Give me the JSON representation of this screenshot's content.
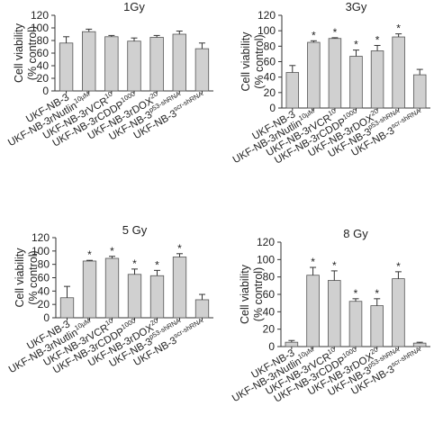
{
  "colors": {
    "bar_fill": "#d0d0d0",
    "bar_stroke": "#555555",
    "axis": "#333333",
    "text": "#222222"
  },
  "categories": [
    {
      "base": "UKF-NB-3",
      "sup": ""
    },
    {
      "base": "UKF-NB-3rNutlin",
      "sup": "10µM"
    },
    {
      "base": "UKF-NB-3rVCR",
      "sup": "10"
    },
    {
      "base": "UKF-NB-3rCDDP",
      "sup": "1000"
    },
    {
      "base": "UKF-NB-3rDOX",
      "sup": "20"
    },
    {
      "base": "UKF-NB-3",
      "sup": "p53-shRNA"
    },
    {
      "base": "UKF-NB-3",
      "sup": "scr-shRNA"
    }
  ],
  "chart_data": [
    {
      "type": "bar",
      "title": "1Gy",
      "ylabel": [
        "Cell viability",
        "(% control)"
      ],
      "ylim": [
        0,
        120
      ],
      "yticks": [
        0,
        20,
        40,
        60,
        80,
        100,
        120
      ],
      "values": [
        76,
        94,
        86,
        79,
        85,
        90,
        67
      ],
      "errors": [
        10,
        4,
        2,
        5,
        3,
        5,
        9
      ],
      "significant": [
        false,
        false,
        false,
        false,
        false,
        false,
        false
      ]
    },
    {
      "type": "bar",
      "title": "3Gy",
      "ylabel": [
        "Cell viability",
        "(% control)"
      ],
      "ylim": [
        0,
        120
      ],
      "yticks": [
        0,
        20,
        40,
        60,
        80,
        100,
        120
      ],
      "values": [
        46,
        85,
        90,
        67,
        74,
        92,
        43
      ],
      "errors": [
        9,
        2,
        1,
        8,
        7,
        4,
        7
      ],
      "significant": [
        false,
        true,
        true,
        true,
        true,
        true,
        false
      ]
    },
    {
      "type": "bar",
      "title": "5 Gy",
      "ylabel": [
        "Cell viability",
        "(% control)"
      ],
      "ylim": [
        0,
        120
      ],
      "yticks": [
        0,
        20,
        40,
        60,
        80,
        100,
        120
      ],
      "values": [
        30,
        85,
        89,
        65,
        63,
        91,
        27
      ],
      "errors": [
        17,
        1,
        3,
        8,
        8,
        5,
        8
      ],
      "significant": [
        false,
        true,
        true,
        true,
        true,
        true,
        false
      ]
    },
    {
      "type": "bar",
      "title": "8 Gy",
      "ylabel": [
        "Cell viability",
        "(% control)"
      ],
      "ylim": [
        0,
        120
      ],
      "yticks": [
        0,
        20,
        40,
        60,
        80,
        100,
        120
      ],
      "values": [
        5,
        82,
        76,
        52,
        47,
        78,
        4
      ],
      "errors": [
        2,
        9,
        11,
        3,
        8,
        8,
        1
      ],
      "significant": [
        false,
        true,
        true,
        true,
        true,
        true,
        false
      ]
    }
  ]
}
